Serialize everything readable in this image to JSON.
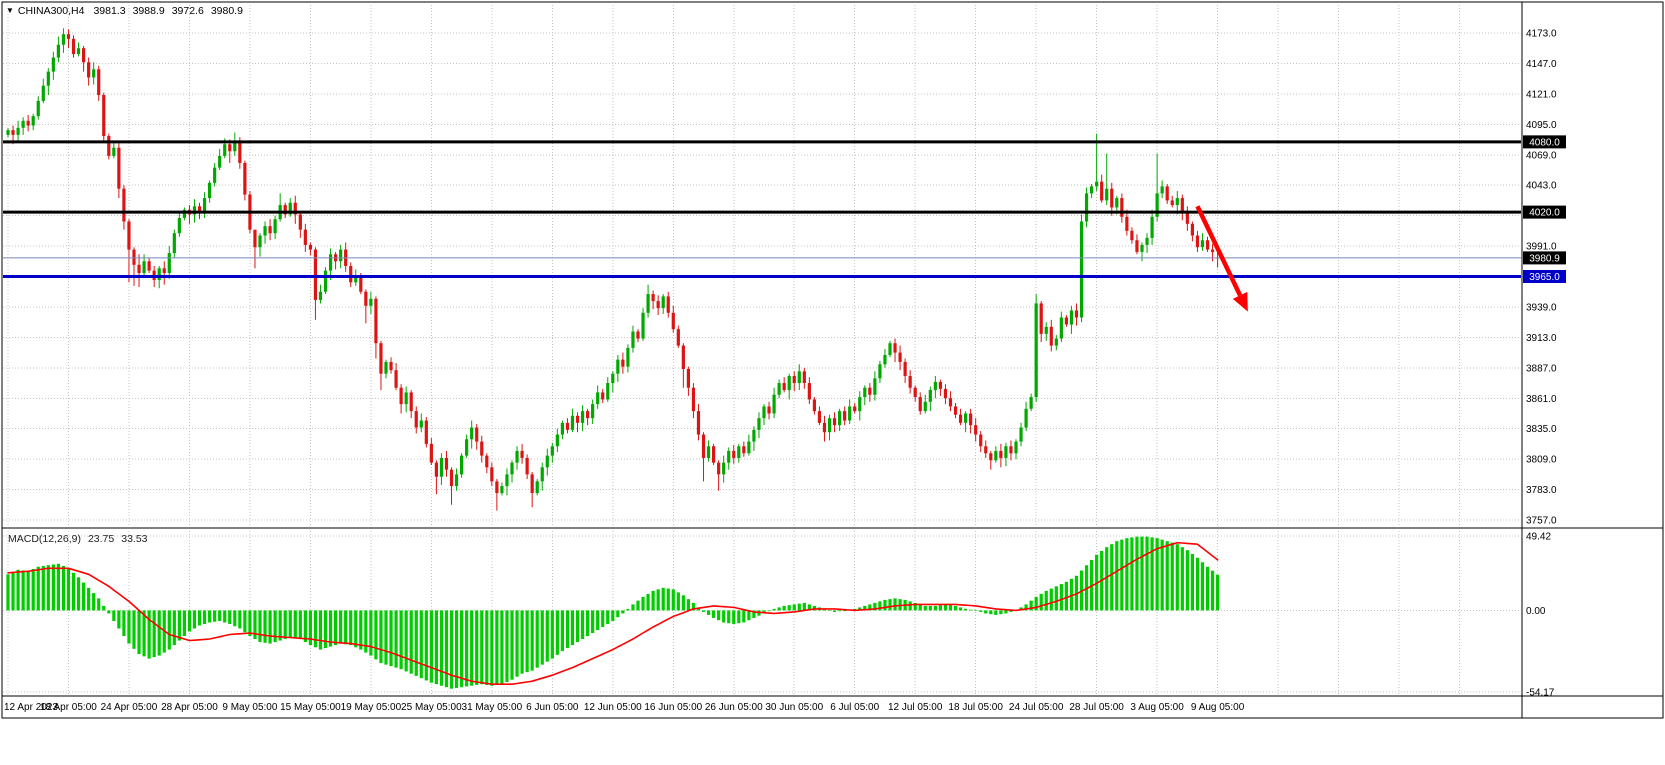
{
  "header": {
    "symbol": "CHINA300,H4",
    "open": "3981.3",
    "high": "3988.9",
    "low": "3972.6",
    "close": "3980.9"
  },
  "icons": {
    "symbol_menu": "▼"
  },
  "macd_label": {
    "name": "MACD(12,26,9)",
    "main_value": "23.75",
    "signal_value": "33.53"
  },
  "price_axis_boxes": {
    "bid_label": "3980.9"
  },
  "macd_axis": {
    "labels": [
      {
        "value": 49.42,
        "label": "49.42"
      },
      {
        "value": 0,
        "label": "0.00"
      },
      {
        "value": -54.17,
        "label": "-54.17"
      }
    ]
  },
  "time_axis": {
    "labels": [
      "12 Apr 2023",
      "18 Apr 05:00",
      "24 Apr 05:00",
      "28 Apr 05:00",
      "9 May 05:00",
      "15 May 05:00",
      "19 May 05:00",
      "25 May 05:00",
      "31 May 05:00",
      "6 Jun 05:00",
      "12 Jun 05:00",
      "16 Jun 05:00",
      "26 Jun 05:00",
      "30 Jun 05:00",
      "6 Jul 05:00",
      "12 Jul 05:00",
      "18 Jul 05:00",
      "24 Jul 05:00",
      "28 Jul 05:00",
      "3 Aug 05:00",
      "9 Aug 05:00"
    ]
  },
  "colors": {
    "bg": "#ffffff",
    "frame": "#000000",
    "grid": "#c4c4c4",
    "bull": "#00a800",
    "bear": "#dc1414",
    "macd_bar": "#00cc00",
    "signal": "#ff0000",
    "level_black": "#000000",
    "level_blue": "#0000c8",
    "bid_line": "#7788bb",
    "arrow": "#ff0000",
    "axis_text": "#000000",
    "box_text": "#ffffff"
  },
  "chart_data": {
    "type": "candlestick+macd",
    "instrument": "CHINA300",
    "timeframe": "H4",
    "price_gridline_step": 26,
    "price_gridlines": [
      {
        "value": 4173,
        "label": "4173.0"
      },
      {
        "value": 4147,
        "label": "4147.0"
      },
      {
        "value": 4121,
        "label": "4121.0"
      },
      {
        "value": 4095,
        "label": "4095.0"
      },
      {
        "value": 4069,
        "label": "4069.0"
      },
      {
        "value": 4043,
        "label": "4043.0"
      },
      {
        "value": 4017,
        "label": null
      },
      {
        "value": 3991,
        "label": "3991.0"
      },
      {
        "value": 3965,
        "label": null
      },
      {
        "value": 3939,
        "label": "3939.0"
      },
      {
        "value": 3913,
        "label": "3913.0"
      },
      {
        "value": 3887,
        "label": "3887.0"
      },
      {
        "value": 3861,
        "label": "3861.0"
      },
      {
        "value": 3835,
        "label": "3835.0"
      },
      {
        "value": 3809,
        "label": "3809.0"
      },
      {
        "value": 3783,
        "label": "3783.0"
      },
      {
        "value": 3757,
        "label": "3757.0"
      }
    ],
    "levels": [
      {
        "price": 4080,
        "label": "4080.0",
        "color_key": "level_black"
      },
      {
        "price": 4020,
        "label": "4020.0",
        "color_key": "level_black"
      },
      {
        "price": 3965,
        "label": "3965.0",
        "color_key": "level_blue"
      }
    ],
    "bid_price": 3980.9,
    "candles": {
      "opens_rule": "previous_close",
      "first_open": 4086,
      "closes": [
        4090,
        4086,
        4092,
        4098,
        4094,
        4102,
        4115,
        4128,
        4140,
        4152,
        4163,
        4172,
        4168,
        4155,
        4160,
        4148,
        4135,
        4142,
        4120,
        4085,
        4068,
        4075,
        4040,
        4012,
        3988,
        3975,
        3968,
        3978,
        3970,
        3962,
        3972,
        3968,
        3985,
        4002,
        4015,
        4022,
        4018,
        4025,
        4020,
        4032,
        4045,
        4058,
        4068,
        4078,
        4072,
        4080,
        4062,
        4035,
        4005,
        3990,
        4000,
        4008,
        4002,
        4014,
        4026,
        4018,
        4028,
        4018,
        4005,
        3992,
        3988,
        3945,
        3952,
        3970,
        3984,
        3978,
        3988,
        3974,
        3960,
        3966,
        3952,
        3940,
        3946,
        3908,
        3882,
        3892,
        3885,
        3870,
        3856,
        3866,
        3850,
        3836,
        3842,
        3822,
        3806,
        3794,
        3810,
        3800,
        3786,
        3796,
        3812,
        3826,
        3836,
        3824,
        3812,
        3802,
        3790,
        3780,
        3786,
        3796,
        3806,
        3816,
        3810,
        3796,
        3780,
        3790,
        3802,
        3812,
        3820,
        3830,
        3840,
        3834,
        3846,
        3840,
        3850,
        3844,
        3856,
        3866,
        3860,
        3874,
        3882,
        3894,
        3888,
        3904,
        3918,
        3912,
        3934,
        3950,
        3944,
        3938,
        3948,
        3934,
        3920,
        3906,
        3886,
        3870,
        3850,
        3830,
        3810,
        3820,
        3806,
        3796,
        3806,
        3816,
        3810,
        3820,
        3814,
        3824,
        3834,
        3844,
        3854,
        3848,
        3864,
        3874,
        3868,
        3880,
        3874,
        3884,
        3874,
        3860,
        3850,
        3840,
        3832,
        3844,
        3838,
        3850,
        3842,
        3854,
        3850,
        3862,
        3870,
        3864,
        3878,
        3890,
        3898,
        3908,
        3900,
        3892,
        3880,
        3870,
        3862,
        3850,
        3858,
        3868,
        3875,
        3869,
        3861,
        3854,
        3847,
        3840,
        3848,
        3838,
        3830,
        3820,
        3814,
        3808,
        3816,
        3810,
        3820,
        3814,
        3824,
        3836,
        3852,
        3862,
        3942,
        3916,
        3922,
        3906,
        3912,
        3930,
        3924,
        3936,
        3930,
        4012,
        4036,
        4042,
        4046,
        4030,
        4040,
        4024,
        4032,
        4016,
        4004,
        3996,
        3986,
        3992,
        3998,
        4016,
        4036,
        4042,
        4030,
        4026,
        4032,
        4020,
        4010,
        4000,
        3990,
        3996,
        3988,
        3986,
        3980.9
      ],
      "wick_overrides": {
        "10": [
          4170,
          4148
        ],
        "11": [
          4177,
          4156
        ],
        "12": [
          4176,
          4160
        ],
        "19": [
          4122,
          4080
        ],
        "24": [
          4014,
          3960
        ],
        "25": [
          3990,
          3957
        ],
        "26": [
          3984,
          3956
        ],
        "29": [
          3974,
          3956
        ],
        "31": [
          3978,
          3958
        ],
        "43": [
          4083,
          4066
        ],
        "44": [
          4082,
          4062
        ],
        "45": [
          4088,
          4068
        ],
        "47": [
          4064,
          4030
        ],
        "49": [
          4000,
          3972
        ],
        "54": [
          4036,
          4012
        ],
        "61": [
          3990,
          3928
        ],
        "71": [
          3954,
          3925
        ],
        "73": [
          3948,
          3895
        ],
        "74": [
          3910,
          3868
        ],
        "85": [
          3808,
          3779
        ],
        "88": [
          3802,
          3770
        ],
        "97": [
          3792,
          3765
        ],
        "104": [
          3798,
          3768
        ],
        "127": [
          3958,
          3930
        ],
        "134": [
          3908,
          3870
        ],
        "138": [
          3832,
          3790
        ],
        "141": [
          3808,
          3782
        ],
        "195": [
          3816,
          3800
        ],
        "204": [
          3950,
          3858
        ],
        "213": [
          4018,
          3926
        ],
        "216": [
          4087,
          4038
        ],
        "218": [
          4070,
          4026
        ],
        "228": [
          4070,
          4012
        ]
      },
      "last_candle": {
        "open": 3981.3,
        "high": 3988.9,
        "low": 3972.6,
        "close": 3980.9
      }
    },
    "macd": {
      "step": 2,
      "values": [
        24,
        27,
        26,
        29,
        30,
        31,
        28,
        22,
        15,
        8,
        -2,
        -12,
        -22,
        -29,
        -32,
        -30,
        -26,
        -20,
        -14,
        -10,
        -8,
        -7,
        -9,
        -12,
        -17,
        -21,
        -22,
        -20,
        -18,
        -19,
        -23,
        -26,
        -24,
        -22,
        -23,
        -26,
        -30,
        -35,
        -37,
        -39,
        -42,
        -45,
        -48,
        -50,
        -52,
        -51,
        -50,
        -49,
        -50,
        -49,
        -46,
        -42,
        -40,
        -36,
        -32,
        -27,
        -23,
        -19,
        -15,
        -11,
        -7,
        -2,
        4,
        9,
        13,
        15,
        14,
        10,
        5,
        -1,
        -5,
        -8,
        -9,
        -8,
        -5,
        -2,
        1,
        3,
        4,
        5,
        3,
        1,
        -1,
        0,
        1,
        3,
        5,
        7,
        8,
        7,
        5,
        3,
        3,
        4,
        3,
        1,
        0,
        -2,
        -3,
        -2,
        0,
        4,
        9,
        13,
        16,
        19,
        23,
        30,
        37,
        42,
        46,
        48,
        49,
        49,
        48,
        46,
        44,
        40,
        35,
        29,
        23.75
      ]
    },
    "signal": {
      "step": 4,
      "values": [
        25,
        26,
        28,
        28,
        24,
        16,
        6,
        -6,
        -16,
        -20,
        -19,
        -16,
        -15,
        -17,
        -18,
        -19,
        -21,
        -22,
        -24,
        -28,
        -33,
        -38,
        -43,
        -47,
        -49,
        -49,
        -47,
        -43,
        -38,
        -32,
        -26,
        -19,
        -11,
        -4,
        1,
        3,
        2,
        -1,
        -2,
        -1,
        1,
        1,
        0,
        1,
        3,
        4,
        4,
        4,
        3,
        1,
        0,
        2,
        6,
        11,
        18,
        26,
        34,
        41,
        45,
        44,
        33.53
      ]
    },
    "macd_range": [
      -54.17,
      49.42
    ],
    "annotation_arrow": {
      "from_bar": 236,
      "from_price": 4025,
      "to_bar": 246,
      "to_price": 3935
    }
  }
}
